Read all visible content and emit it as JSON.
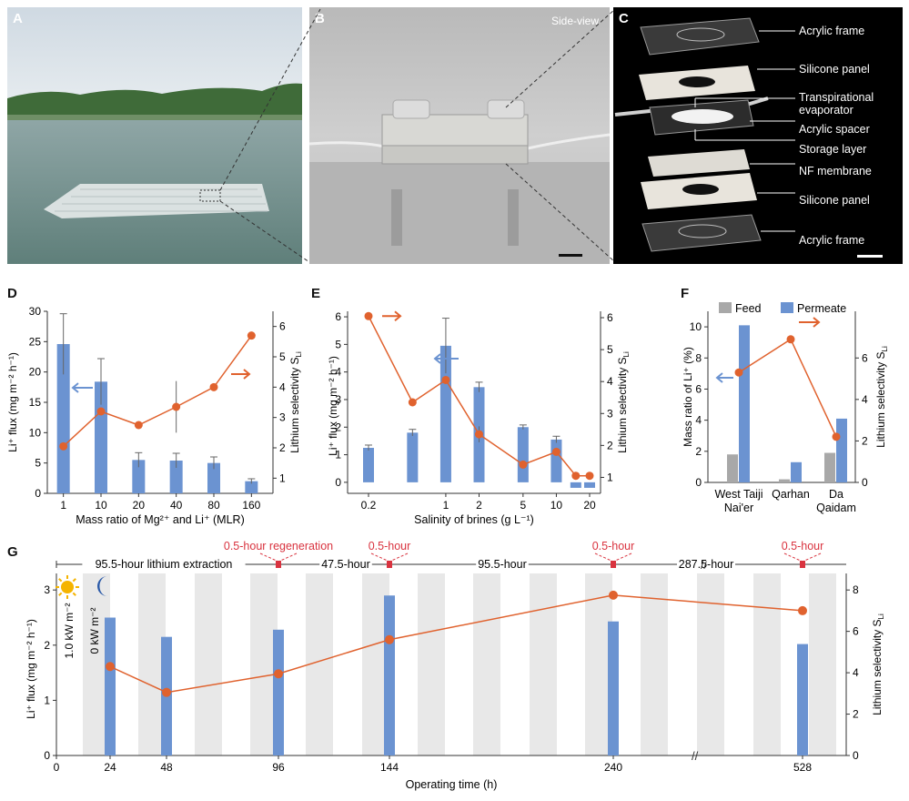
{
  "panels": {
    "A": {
      "letter": "A"
    },
    "B": {
      "letter": "B",
      "caption": "Side-view"
    },
    "C": {
      "letter": "C",
      "labels": [
        "Acrylic frame",
        "Silicone panel",
        "Transpirational",
        "evaporator",
        "Acrylic spacer",
        "Storage layer",
        "NF membrane",
        "Silicone panel",
        "Acrylic frame"
      ]
    },
    "D": {
      "letter": "D"
    },
    "E": {
      "letter": "E"
    },
    "F": {
      "letter": "F"
    },
    "G": {
      "letter": "G"
    }
  },
  "colors": {
    "bar": "#6b93d1",
    "bar_feed": "#a8a8a8",
    "line": "#e0622e",
    "arrow_blue": "#6b93d1",
    "band": "#e8e8e8",
    "annot_red": "#d9333f"
  },
  "chart_data": [
    {
      "id": "D",
      "type": "bar+line",
      "categories": [
        "1",
        "10",
        "20",
        "40",
        "80",
        "160"
      ],
      "bar_series": {
        "name": "Li+ flux",
        "values": [
          24.6,
          18.4,
          5.5,
          5.4,
          5.0,
          2.0
        ],
        "errors": [
          5.0,
          3.8,
          1.2,
          1.2,
          1.0,
          0.4
        ]
      },
      "line_series": {
        "name": "Lithium selectivity",
        "values": [
          2.05,
          3.2,
          2.75,
          3.35,
          4.0,
          5.7
        ],
        "errors": [
          0,
          0,
          0,
          0.85,
          0,
          0
        ]
      },
      "xlabel": "Mass ratio of Mg²⁺ and Li⁺ (MLR)",
      "ylabel": "Li⁺ flux (mg m⁻² h⁻¹)",
      "y2label": "Lithium selectivity S",
      "y2label_sub": "Li",
      "ylim": [
        0,
        30
      ],
      "yticks": [
        "0",
        "5",
        "10",
        "15",
        "20",
        "25",
        "30"
      ],
      "y2lim": [
        0.5,
        6.5
      ],
      "y2ticks": [
        "1",
        "2",
        "3",
        "4",
        "5",
        "6"
      ]
    },
    {
      "id": "E",
      "type": "bar+line",
      "x": [
        0.2,
        0.5,
        1,
        2,
        5,
        10,
        15,
        20
      ],
      "xticks": [
        "0.2",
        "1",
        "2",
        "5",
        "10",
        "20"
      ],
      "bar_series": {
        "name": "Li+ flux",
        "values": [
          1.25,
          1.8,
          4.95,
          3.45,
          2.0,
          1.55,
          0.0,
          0.0
        ],
        "errors": [
          0.1,
          0.12,
          1.0,
          0.18,
          0.08,
          0.12,
          0,
          0
        ]
      },
      "line_series": {
        "name": "Lithium selectivity",
        "values": [
          6.05,
          3.35,
          4.05,
          2.35,
          1.4,
          1.8,
          1.05,
          1.05
        ],
        "errors": [
          0,
          0,
          0,
          0.25,
          0,
          0,
          0,
          0
        ]
      },
      "xlabel": "Salinity of brines (g L⁻¹)",
      "ylabel": "Li⁺ flux (mg m⁻² h⁻¹)",
      "y2label": "Lithium selectivity S",
      "y2label_sub": "Li",
      "ylim": [
        -0.4,
        6.2
      ],
      "yticks": [
        "0",
        "1",
        "2",
        "3",
        "4",
        "5",
        "6"
      ],
      "y2lim": [
        0.5,
        6.2
      ],
      "y2ticks": [
        "1",
        "2",
        "3",
        "4",
        "5",
        "6"
      ]
    },
    {
      "id": "F",
      "type": "grouped-bar+line",
      "categories": [
        "West Taiji",
        "Qarhan",
        "Da"
      ],
      "category_line2": [
        "Nai'er",
        "",
        "Qaidam"
      ],
      "series": [
        {
          "name": "Feed",
          "values": [
            1.8,
            0.2,
            1.9
          ]
        },
        {
          "name": "Permeate",
          "values": [
            10.1,
            1.3,
            4.1
          ]
        }
      ],
      "line_series": {
        "name": "Lithium selectivity",
        "values": [
          5.3,
          6.9,
          2.2
        ]
      },
      "ylabel": "Mass ratio of Li⁺ (%)",
      "y2label": "Lithium selectivity S",
      "y2label_sub": "Li",
      "ylim": [
        0,
        11
      ],
      "yticks": [
        "0",
        "2",
        "4",
        "6",
        "8",
        "10"
      ],
      "y2lim": [
        0,
        8.25
      ],
      "y2ticks": [
        "0",
        "2",
        "4",
        "6"
      ]
    },
    {
      "id": "G",
      "type": "bar+line",
      "x": [
        24,
        48,
        96,
        144,
        240,
        528
      ],
      "xticks": [
        "0",
        "24",
        "48",
        "96",
        "144",
        "240",
        "528"
      ],
      "bar_series": {
        "name": "Li+ flux",
        "values": [
          2.5,
          2.15,
          2.28,
          2.9,
          2.43,
          2.02
        ]
      },
      "line_series": {
        "name": "Lithium selectivity",
        "values": [
          4.3,
          3.05,
          3.95,
          5.6,
          7.75,
          7.0
        ]
      },
      "xlabel": "Operating time (h)",
      "ylabel": "Li⁺ flux (mg m⁻² h⁻¹)",
      "y2label": "Lithium selectivity S",
      "y2label_sub": "Li",
      "ylim": [
        0,
        3.3
      ],
      "yticks": [
        "0",
        "1",
        "2",
        "3"
      ],
      "y2lim": [
        0,
        8.8
      ],
      "y2ticks": [
        "0",
        "2",
        "4",
        "6",
        "8"
      ],
      "sun_label": "1.0 kW m⁻²",
      "moon_label": "0 kW m⁻²",
      "timeline": {
        "segments": [
          "95.5-hour lithium extraction",
          "47.5-hour",
          "95.5-hour",
          "287.5-hour"
        ],
        "regenerations": [
          "0.5-hour regeneration",
          "0.5-hour",
          "0.5-hour",
          "0.5-hour"
        ]
      }
    }
  ]
}
